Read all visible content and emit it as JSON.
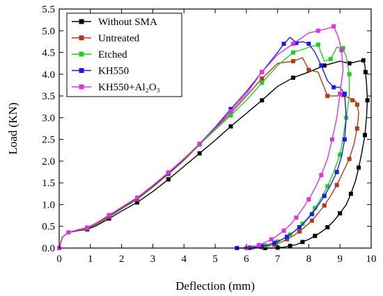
{
  "chart_data": {
    "type": "line",
    "title": "",
    "xlabel": "Deflection (mm)",
    "ylabel": "Load (KN)",
    "xlim": [
      0,
      10
    ],
    "ylim": [
      0,
      5.5
    ],
    "xticks": [
      "0",
      "1",
      "2",
      "3",
      "4",
      "5",
      "6",
      "7",
      "8",
      "9",
      "10"
    ],
    "yticks": [
      "0.0",
      "0.5",
      "1.0",
      "1.5",
      "2.0",
      "2.5",
      "3.0",
      "3.5",
      "4.0",
      "4.5",
      "5.0",
      "5.5"
    ],
    "grid": false,
    "legend_position": "top-left",
    "series": [
      {
        "name": "Without SMA",
        "color": "#000000",
        "marker": "square",
        "x": [
          0.0,
          0.1,
          0.3,
          0.6,
          0.9,
          1.2,
          1.6,
          2.0,
          2.5,
          3.0,
          3.5,
          4.0,
          4.5,
          5.0,
          5.5,
          6.0,
          6.5,
          7.0,
          7.5,
          8.0,
          8.5,
          9.0,
          9.3,
          9.6,
          9.75,
          9.8,
          9.82,
          9.85,
          9.88,
          9.85,
          9.8,
          9.7,
          9.6,
          9.5,
          9.35,
          9.2,
          9.0,
          8.8,
          8.6,
          8.4,
          8.2,
          8.0,
          7.8,
          7.6,
          7.4,
          7.2,
          7.0,
          6.8,
          6.6,
          6.4
        ],
        "y": [
          0.0,
          0.25,
          0.36,
          0.4,
          0.43,
          0.52,
          0.68,
          0.85,
          1.05,
          1.3,
          1.58,
          1.88,
          2.18,
          2.48,
          2.8,
          3.1,
          3.4,
          3.72,
          3.92,
          4.05,
          4.2,
          4.3,
          4.25,
          4.3,
          4.32,
          4.2,
          4.05,
          3.8,
          3.4,
          3.0,
          2.6,
          2.2,
          1.85,
          1.55,
          1.25,
          1.0,
          0.8,
          0.62,
          0.48,
          0.37,
          0.28,
          0.2,
          0.14,
          0.08,
          0.05,
          0.02,
          0.01,
          0.0,
          0.0,
          0.0
        ]
      },
      {
        "name": "Untreated",
        "color": "#b03a1a",
        "marker": "square",
        "x": [
          0.0,
          0.1,
          0.3,
          0.6,
          0.9,
          1.2,
          1.6,
          2.0,
          2.5,
          3.0,
          3.5,
          4.0,
          4.5,
          5.0,
          5.5,
          6.0,
          6.5,
          7.0,
          7.5,
          7.8,
          8.0,
          8.3,
          8.6,
          8.9,
          9.1,
          9.3,
          9.4,
          9.5,
          9.55,
          9.6,
          9.55,
          9.45,
          9.3,
          9.1,
          8.9,
          8.7,
          8.5,
          8.3,
          8.1,
          7.9,
          7.7,
          7.5,
          7.3,
          7.1,
          6.9,
          6.7,
          6.5,
          6.3,
          6.1,
          5.9
        ],
        "y": [
          0.0,
          0.25,
          0.36,
          0.4,
          0.45,
          0.55,
          0.72,
          0.9,
          1.12,
          1.4,
          1.7,
          2.02,
          2.38,
          2.75,
          3.1,
          3.5,
          3.9,
          4.25,
          4.3,
          4.38,
          4.1,
          4.05,
          3.5,
          3.5,
          3.52,
          3.45,
          3.4,
          3.38,
          3.3,
          3.1,
          2.75,
          2.4,
          2.05,
          1.75,
          1.45,
          1.2,
          0.98,
          0.8,
          0.63,
          0.5,
          0.38,
          0.28,
          0.2,
          0.13,
          0.08,
          0.04,
          0.02,
          0.0,
          0.0,
          0.0
        ]
      },
      {
        "name": "Etched",
        "color": "#22cc22",
        "marker": "square",
        "x": [
          0.0,
          0.1,
          0.3,
          0.6,
          0.9,
          1.2,
          1.6,
          2.0,
          2.5,
          3.0,
          3.5,
          4.0,
          4.5,
          5.0,
          5.5,
          6.0,
          6.5,
          7.0,
          7.5,
          8.0,
          8.3,
          8.5,
          8.7,
          8.9,
          9.1,
          9.2,
          9.3,
          9.3,
          9.2,
          9.1,
          9.0,
          8.8,
          8.6,
          8.4,
          8.2,
          8.0,
          7.8,
          7.6,
          7.4,
          7.2,
          7.0,
          6.8,
          6.6,
          6.4,
          6.2,
          6.0
        ],
        "y": [
          0.0,
          0.25,
          0.36,
          0.42,
          0.46,
          0.57,
          0.74,
          0.92,
          1.14,
          1.42,
          1.72,
          2.04,
          2.38,
          2.72,
          3.05,
          3.4,
          3.8,
          4.2,
          4.5,
          4.62,
          4.68,
          4.3,
          4.35,
          4.62,
          4.6,
          4.4,
          4.0,
          3.5,
          3.0,
          2.55,
          2.15,
          1.75,
          1.42,
          1.15,
          0.92,
          0.72,
          0.56,
          0.42,
          0.31,
          0.22,
          0.15,
          0.1,
          0.06,
          0.03,
          0.01,
          0.0
        ]
      },
      {
        "name": "KH550",
        "color": "#1a1ae6",
        "marker": "square",
        "x": [
          0.0,
          0.1,
          0.3,
          0.6,
          0.9,
          1.2,
          1.6,
          2.0,
          2.5,
          3.0,
          3.5,
          4.0,
          4.5,
          5.0,
          5.5,
          6.0,
          6.5,
          7.0,
          7.2,
          7.4,
          7.6,
          7.8,
          8.0,
          8.2,
          8.4,
          8.6,
          8.8,
          9.0,
          9.15,
          9.2,
          9.15,
          9.05,
          8.9,
          8.7,
          8.5,
          8.3,
          8.1,
          7.9,
          7.7,
          7.5,
          7.3,
          7.1,
          6.9,
          6.7,
          6.5,
          6.3,
          6.1,
          5.9,
          5.7
        ],
        "y": [
          0.0,
          0.25,
          0.36,
          0.42,
          0.47,
          0.58,
          0.75,
          0.93,
          1.15,
          1.43,
          1.73,
          2.05,
          2.4,
          2.78,
          3.2,
          3.6,
          4.05,
          4.5,
          4.7,
          4.85,
          4.72,
          4.75,
          4.7,
          4.5,
          4.2,
          3.85,
          3.7,
          3.7,
          3.55,
          3.0,
          2.5,
          2.1,
          1.75,
          1.45,
          1.2,
          0.98,
          0.78,
          0.62,
          0.48,
          0.36,
          0.26,
          0.18,
          0.12,
          0.07,
          0.04,
          0.02,
          0.01,
          0.0,
          0.0
        ]
      },
      {
        "name": "KH550+Al₂O₃",
        "color": "#dd33dd",
        "marker": "square",
        "x": [
          0.0,
          0.1,
          0.3,
          0.6,
          0.9,
          1.2,
          1.6,
          2.0,
          2.5,
          3.0,
          3.5,
          4.0,
          4.5,
          5.0,
          5.5,
          6.0,
          6.5,
          7.0,
          7.5,
          8.0,
          8.3,
          8.6,
          8.8,
          8.95,
          9.05,
          9.1,
          9.0,
          8.9,
          8.75,
          8.6,
          8.4,
          8.2,
          8.0,
          7.8,
          7.6,
          7.4,
          7.2,
          7.0,
          6.8,
          6.6,
          6.4,
          6.2,
          6.0
        ],
        "y": [
          0.0,
          0.25,
          0.36,
          0.42,
          0.47,
          0.58,
          0.76,
          0.94,
          1.16,
          1.44,
          1.74,
          2.06,
          2.4,
          2.76,
          3.15,
          3.55,
          4.05,
          4.45,
          4.7,
          4.95,
          5.0,
          5.05,
          5.1,
          4.85,
          4.55,
          4.1,
          3.55,
          3.0,
          2.5,
          2.05,
          1.68,
          1.38,
          1.12,
          0.9,
          0.7,
          0.53,
          0.4,
          0.29,
          0.2,
          0.13,
          0.07,
          0.03,
          0.0
        ]
      }
    ]
  }
}
